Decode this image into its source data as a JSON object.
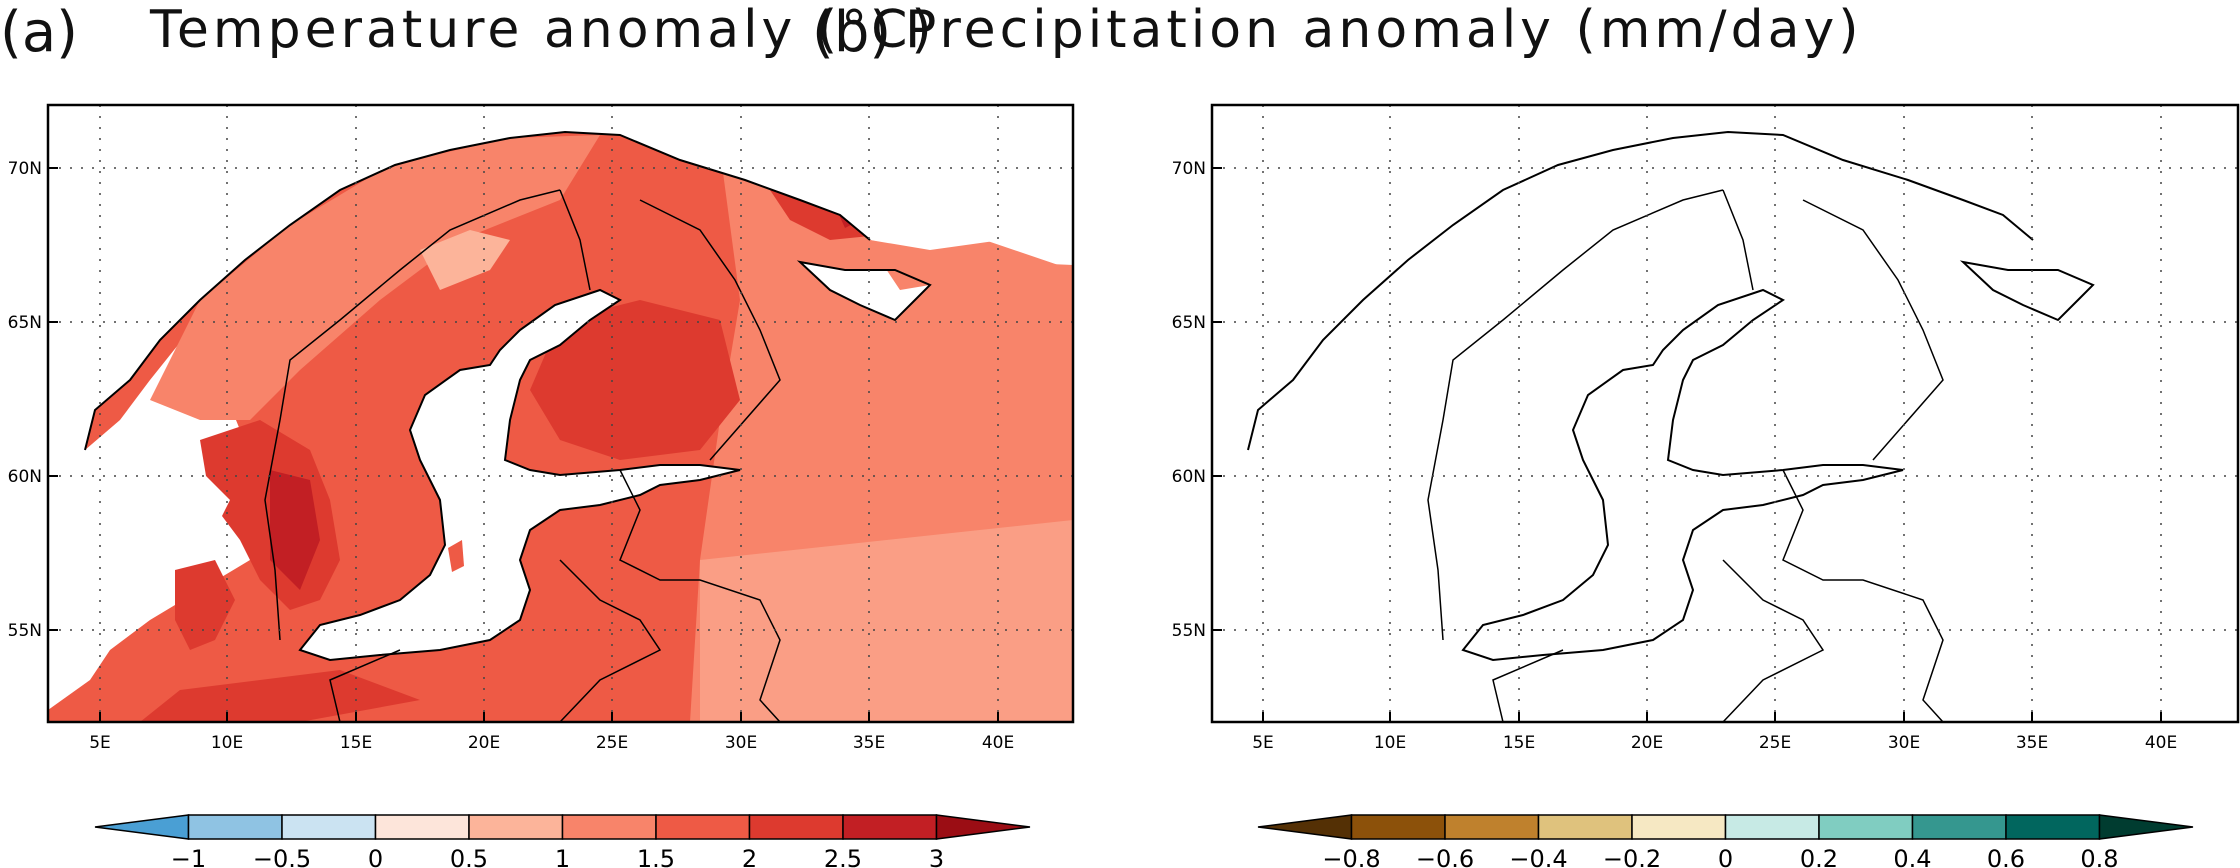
{
  "panels": [
    {
      "letter": "(a)",
      "title": "Temperature anomaly (°C)",
      "lat_labels": [
        "70N",
        "65N",
        "60N",
        "55N"
      ],
      "lon_labels": [
        "5E",
        "10E",
        "15E",
        "20E",
        "25E",
        "30E",
        "35E",
        "40E"
      ],
      "colorbar": {
        "ticks": [
          "−1",
          "−0.5",
          "0",
          "0.5",
          "1",
          "1.5",
          "2",
          "2.5",
          "3"
        ],
        "colors": [
          "#4a9fd4",
          "#8fc3e3",
          "#cbe3f2",
          "#fde5da",
          "#fcb49a",
          "#f8846a",
          "#ee5a45",
          "#dd3a2f",
          "#c21f24",
          "#9b0d14"
        ]
      }
    },
    {
      "letter": "(b)",
      "title": "Precipitation anomaly (mm/day)",
      "lat_labels": [
        "70N",
        "65N",
        "60N",
        "55N"
      ],
      "lon_labels": [
        "5E",
        "10E",
        "15E",
        "20E",
        "25E",
        "30E",
        "35E",
        "40E"
      ],
      "colorbar": {
        "ticks": [
          "−0.8",
          "−0.6",
          "−0.4",
          "−0.2",
          "0",
          "0.2",
          "0.4",
          "0.6",
          "0.8"
        ],
        "colors": [
          "#543005",
          "#8c510a",
          "#bf812d",
          "#dfc27d",
          "#f6e8c3",
          "#c7eae5",
          "#80cdc1",
          "#35978f",
          "#01665e",
          "#003c30"
        ]
      }
    }
  ]
}
